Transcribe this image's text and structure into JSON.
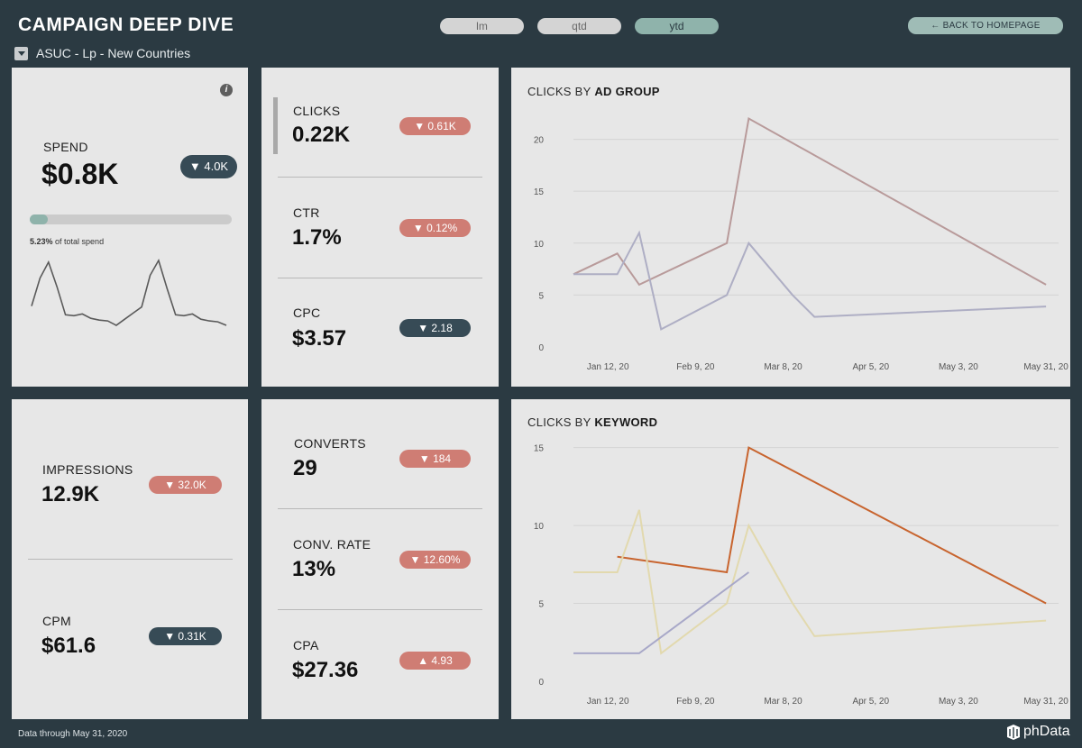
{
  "header": {
    "title": "CAMPAIGN DEEP DIVE",
    "filter_value": "ASUC - Lp - New Countries",
    "periods": [
      {
        "label": "lm",
        "active": false
      },
      {
        "label": "qtd",
        "active": false
      },
      {
        "label": "ytd",
        "active": true
      }
    ],
    "back_button": "← BACK TO HOMEPAGE"
  },
  "spend": {
    "label": "SPEND",
    "value": "$0.8K",
    "delta": "▼ 4.0K",
    "share_pct": "5.23%",
    "share_text": " of total spend",
    "share_fraction": 0.0523,
    "sparkline": [
      3.0,
      6.2,
      8.0,
      5.2,
      2.0,
      1.9,
      2.1,
      1.6,
      1.4,
      1.3,
      0.8,
      1.5,
      2.2,
      2.9,
      6.5,
      8.2,
      5.0,
      2.0,
      1.9,
      2.1,
      1.5,
      1.3,
      1.2,
      0.8
    ]
  },
  "kpis_mid_top": [
    {
      "label": "CLICKS",
      "value": "0.22K",
      "delta": "▼ 0.61K",
      "tone": "neg"
    },
    {
      "label": "CTR",
      "value": "1.7%",
      "delta": "▼ 0.12%",
      "tone": "neg"
    },
    {
      "label": "CPC",
      "value": "$3.57",
      "delta": "▼ 2.18",
      "tone": "dark"
    }
  ],
  "kpis_left_bottom": [
    {
      "label": "IMPRESSIONS",
      "value": "12.9K",
      "delta": "▼ 32.0K",
      "tone": "neg"
    },
    {
      "label": "CPM",
      "value": "$61.6",
      "delta": "▼ 0.31K",
      "tone": "dark"
    }
  ],
  "kpis_mid_bottom": [
    {
      "label": "CONVERTS",
      "value": "29",
      "delta": "▼ 184",
      "tone": "neg"
    },
    {
      "label": "CONV. RATE",
      "value": "13%",
      "delta": "▼ 12.60%",
      "tone": "neg"
    },
    {
      "label": "CPA",
      "value": "$27.36",
      "delta": "▲ 4.93",
      "tone": "neg"
    }
  ],
  "chart_data": [
    {
      "type": "line",
      "title_prefix": "CLICKS BY",
      "title_bold": "AD GROUP",
      "x_tick_labels": [
        "Jan 12, 20",
        "Feb 9, 20",
        "Mar 8, 20",
        "Apr 5, 20",
        "May 3, 20",
        "May 31, 20"
      ],
      "x_tick_days": [
        11,
        39,
        67,
        95,
        123,
        151
      ],
      "x_range": [
        0,
        155
      ],
      "ylim": [
        0,
        23
      ],
      "y_ticks": [
        0,
        5,
        10,
        15,
        20
      ],
      "grid": true,
      "series": [
        {
          "color": "#b89a9a",
          "x": [
            0,
            14,
            21,
            49,
            56,
            151
          ],
          "y": [
            7,
            9,
            6,
            10,
            22,
            6
          ]
        },
        {
          "color": "#aeaec4",
          "x": [
            0,
            14,
            21,
            28,
            49,
            56,
            70,
            77,
            151
          ],
          "y": [
            7,
            7,
            11,
            1.7,
            5,
            10,
            5,
            2.9,
            3.9
          ]
        }
      ]
    },
    {
      "type": "line",
      "title_prefix": "CLICKS BY",
      "title_bold": "KEYWORD",
      "x_tick_labels": [
        "Jan 12, 20",
        "Feb 9, 20",
        "Mar 8, 20",
        "Apr 5, 20",
        "May 3, 20",
        "May 31, 20"
      ],
      "x_tick_days": [
        11,
        39,
        67,
        95,
        123,
        151
      ],
      "x_range": [
        0,
        155
      ],
      "ylim": [
        0,
        15.5
      ],
      "y_ticks": [
        0,
        5,
        10,
        15
      ],
      "grid": true,
      "series": [
        {
          "color": "#c8642e",
          "x": [
            14,
            49,
            56,
            151
          ],
          "y": [
            8,
            7,
            15,
            5
          ]
        },
        {
          "color": "#e2d9ae",
          "x": [
            0,
            14,
            21,
            28,
            49,
            56,
            70,
            77,
            151
          ],
          "y": [
            7,
            7,
            11,
            1.8,
            5,
            10,
            5,
            2.9,
            3.9
          ]
        },
        {
          "color": "#a8a8c8",
          "x": [
            0,
            21,
            56
          ],
          "y": [
            1.8,
            1.8,
            7
          ]
        }
      ]
    }
  ],
  "footer": {
    "data_note": "Data through May 31, 2020",
    "logo_text": "phData"
  }
}
